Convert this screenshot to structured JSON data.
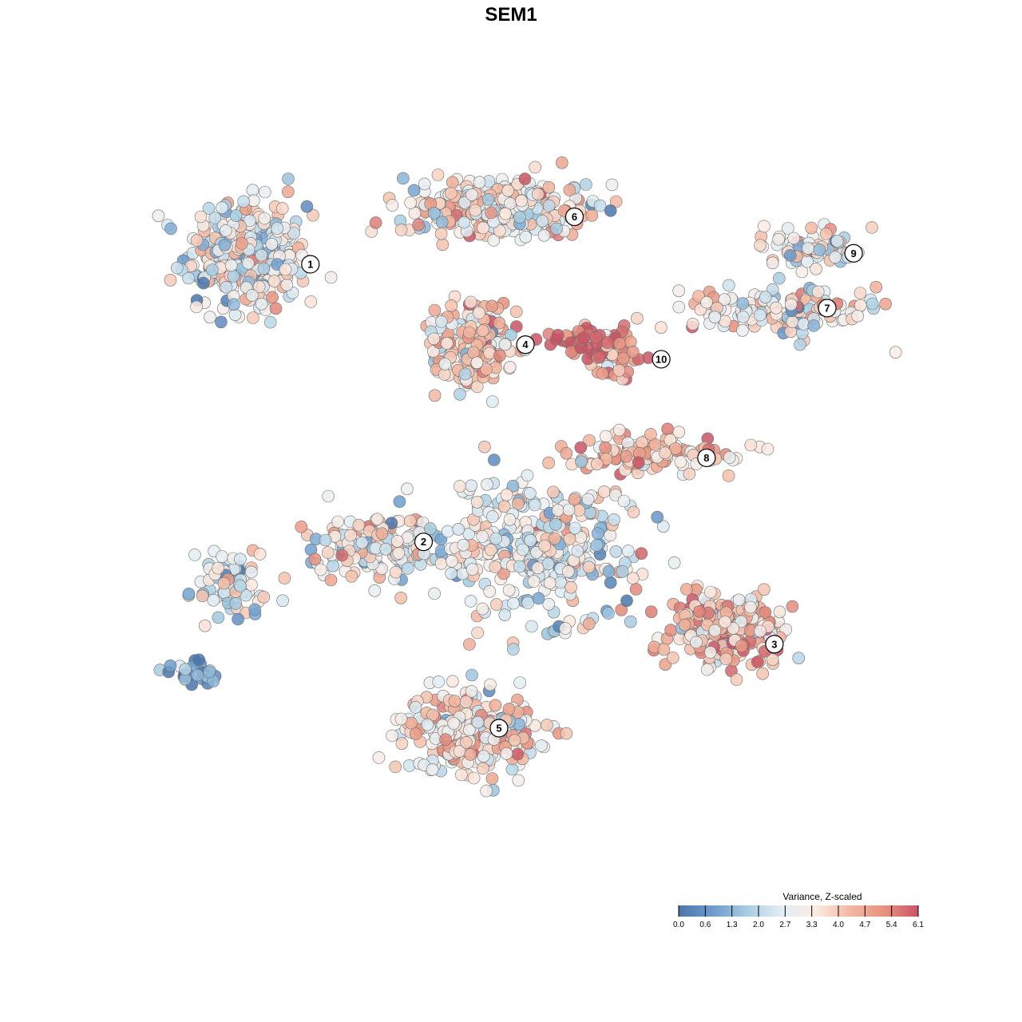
{
  "chart_data": {
    "type": "scatter",
    "title": "SEM1",
    "xlabel": "",
    "ylabel": "",
    "grid": false,
    "axes_visible": false,
    "legend": {
      "title": "Variance, Z-scaled",
      "placement": "bottom-right",
      "min": 0.0,
      "max": 6.1,
      "ticks": [
        "0.0",
        "0.6",
        "1.3",
        "2.0",
        "2.7",
        "3.3",
        "4.0",
        "4.7",
        "5.4",
        "6.1"
      ],
      "colors": [
        "#4a75aa",
        "#6d9ccc",
        "#a8cde2",
        "#e2edf4",
        "#fbece4",
        "#f3b9a2",
        "#e79380",
        "#c95565"
      ]
    },
    "xlim": [
      0,
      100
    ],
    "ylim": [
      0,
      100
    ],
    "clusters": [
      {
        "label": "1",
        "x": 12.0,
        "y": 84.5,
        "value": 2.8,
        "spread": [
          9.0,
          8.5
        ],
        "n": 340
      },
      {
        "label": "2",
        "x": 29.0,
        "y": 45.0,
        "value": 3.0,
        "spread": [
          9.0,
          5.0
        ],
        "n": 150
      },
      {
        "label": "3",
        "x": 76.0,
        "y": 33.5,
        "value": 4.4,
        "spread": [
          9.0,
          5.5
        ],
        "n": 260
      },
      {
        "label": "4",
        "x": 42.5,
        "y": 72.5,
        "value": 3.8,
        "spread": [
          6.0,
          6.5
        ],
        "n": 210
      },
      {
        "label": "5",
        "x": 41.5,
        "y": 19.5,
        "value": 3.6,
        "spread": [
          10.0,
          6.0
        ],
        "n": 280
      },
      {
        "label": "6",
        "x": 45.5,
        "y": 91.5,
        "value": 3.4,
        "spread": [
          14.0,
          4.5
        ],
        "n": 300
      },
      {
        "label": "7",
        "x": 83.0,
        "y": 77.0,
        "value": 3.2,
        "spread": [
          14.0,
          4.0
        ],
        "n": 150
      },
      {
        "label": "8",
        "x": 66.0,
        "y": 57.5,
        "value": 4.2,
        "spread": [
          14.0,
          3.0
        ],
        "n": 120
      },
      {
        "label": "9",
        "x": 88.0,
        "y": 85.5,
        "value": 3.2,
        "spread": [
          8.0,
          3.0
        ],
        "n": 70
      },
      {
        "label": "10",
        "x": 60.5,
        "y": 71.0,
        "value": 5.2,
        "spread": [
          4.0,
          4.0
        ],
        "n": 45
      },
      {
        "label": "",
        "x": 50.0,
        "y": 45.0,
        "value": 2.8,
        "spread": [
          16.0,
          10.0
        ],
        "n": 340
      },
      {
        "label": "",
        "x": 5.0,
        "y": 27.5,
        "value": 1.0,
        "spread": [
          4.0,
          2.0
        ],
        "n": 25
      },
      {
        "label": "",
        "x": 10.0,
        "y": 40.0,
        "value": 2.6,
        "spread": [
          6.0,
          5.0
        ],
        "n": 80
      },
      {
        "label": "",
        "x": 57.0,
        "y": 73.0,
        "value": 5.6,
        "spread": [
          6.0,
          2.0
        ],
        "n": 35
      }
    ],
    "cluster_label_positions": [
      {
        "label": "1",
        "x": 20.5,
        "y": 83.5
      },
      {
        "label": "2",
        "x": 35.5,
        "y": 45.5
      },
      {
        "label": "3",
        "x": 82.0,
        "y": 31.5
      },
      {
        "label": "4",
        "x": 49.0,
        "y": 72.5
      },
      {
        "label": "5",
        "x": 45.5,
        "y": 20.0
      },
      {
        "label": "6",
        "x": 55.5,
        "y": 90.0
      },
      {
        "label": "7",
        "x": 89.0,
        "y": 77.5
      },
      {
        "label": "8",
        "x": 73.0,
        "y": 57.0
      },
      {
        "label": "9",
        "x": 92.5,
        "y": 85.0
      },
      {
        "label": "10",
        "x": 67.0,
        "y": 70.5
      }
    ]
  }
}
